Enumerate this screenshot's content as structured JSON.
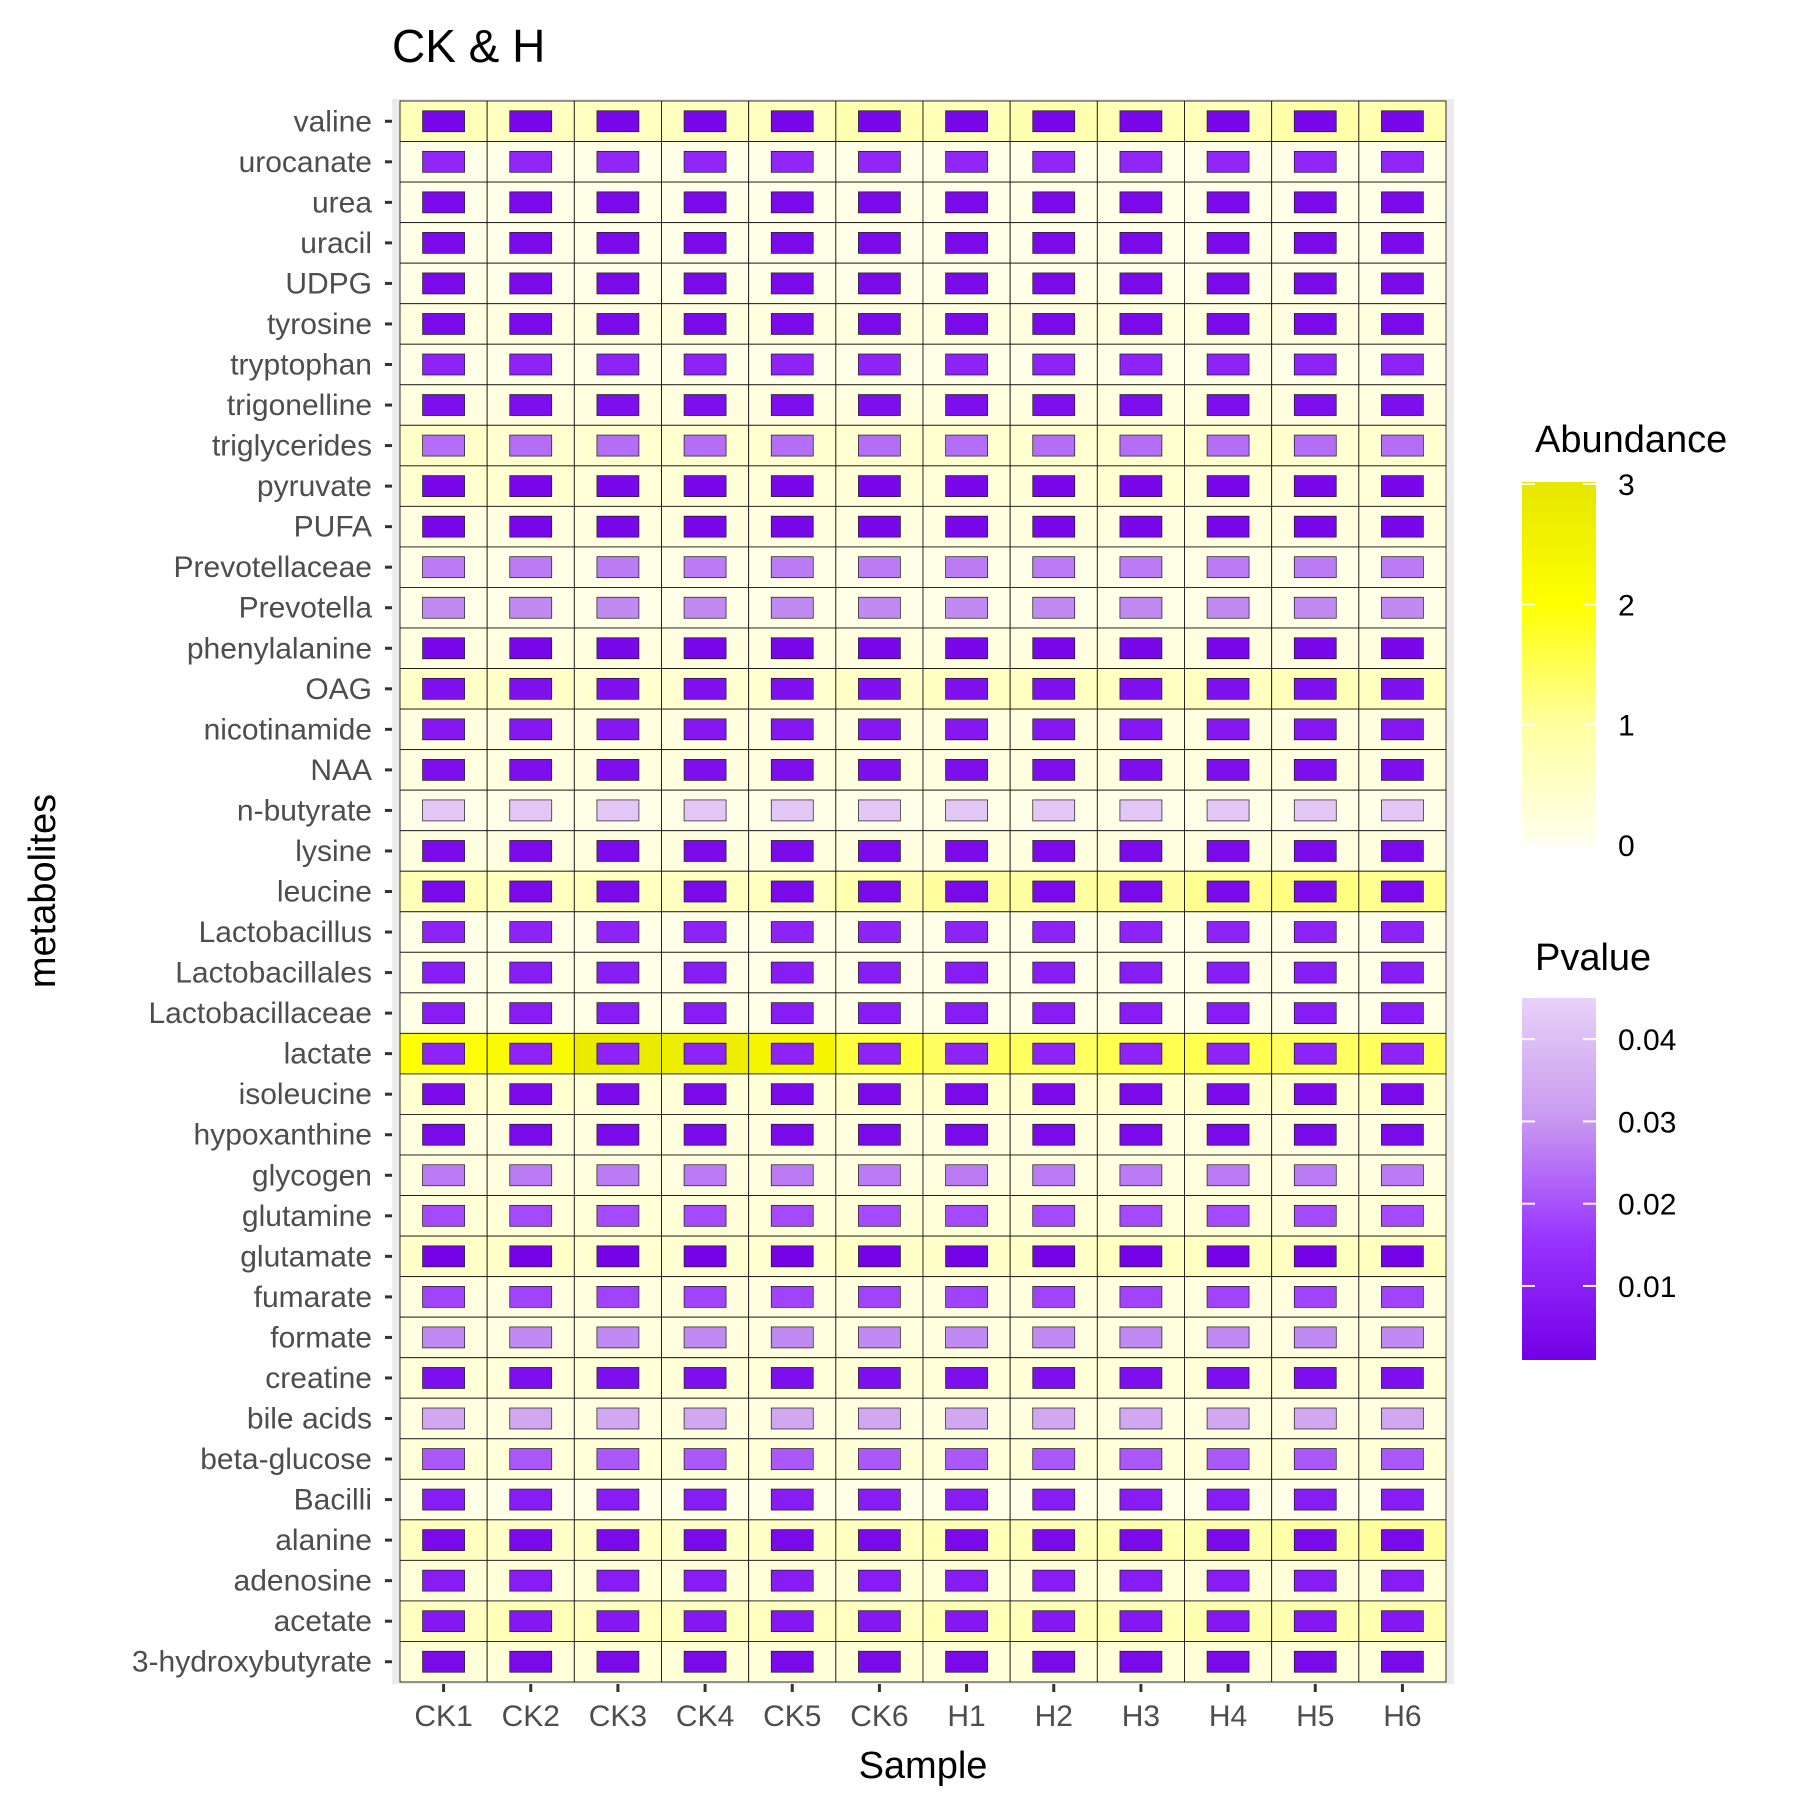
{
  "chart_data": {
    "type": "heatmap",
    "title": "CK & H",
    "xlabel": "Sample",
    "ylabel": "metabolites",
    "x": [
      "CK1",
      "CK2",
      "CK3",
      "CK4",
      "CK5",
      "CK6",
      "H1",
      "H2",
      "H3",
      "H4",
      "H5",
      "H6"
    ],
    "y": [
      "valine",
      "urocanate",
      "urea",
      "uracil",
      "UDPG",
      "tyrosine",
      "tryptophan",
      "trigonelline",
      "triglycerides",
      "pyruvate",
      "PUFA",
      "Prevotellaceae",
      "Prevotella",
      "phenylalanine",
      "OAG",
      "nicotinamide",
      "NAA",
      "n-butyrate",
      "lysine",
      "leucine",
      "Lactobacillus",
      "Lactobacillales",
      "Lactobacillaceae",
      "lactate",
      "isoleucine",
      "hypoxanthine",
      "glycogen",
      "glutamine",
      "glutamate",
      "fumarate",
      "formate",
      "creatine",
      "bile acids",
      "beta-glucose",
      "Bacilli",
      "alanine",
      "adenosine",
      "acetate",
      "3-hydroxybutyrate"
    ],
    "abundance": [
      [
        0.7,
        0.6,
        0.6,
        0.6,
        0.6,
        0.8,
        0.7,
        0.8,
        0.7,
        0.7,
        0.9,
        0.8
      ],
      [
        0.1,
        0.1,
        0.1,
        0.1,
        0.1,
        0.1,
        0.1,
        0.1,
        0.1,
        0.1,
        0.1,
        0.1
      ],
      [
        0.1,
        0.1,
        0.1,
        0.1,
        0.1,
        0.1,
        0.1,
        0.1,
        0.1,
        0.1,
        0.1,
        0.1
      ],
      [
        0.1,
        0.1,
        0.1,
        0.1,
        0.1,
        0.1,
        0.1,
        0.1,
        0.1,
        0.1,
        0.1,
        0.1
      ],
      [
        0.1,
        0.1,
        0.1,
        0.1,
        0.1,
        0.1,
        0.1,
        0.1,
        0.1,
        0.1,
        0.1,
        0.1
      ],
      [
        0.2,
        0.2,
        0.2,
        0.2,
        0.2,
        0.2,
        0.2,
        0.2,
        0.2,
        0.2,
        0.2,
        0.2
      ],
      [
        0.1,
        0.1,
        0.1,
        0.1,
        0.1,
        0.1,
        0.1,
        0.1,
        0.1,
        0.1,
        0.1,
        0.1
      ],
      [
        0.2,
        0.2,
        0.2,
        0.2,
        0.2,
        0.2,
        0.2,
        0.2,
        0.2,
        0.2,
        0.2,
        0.2
      ],
      [
        0.5,
        0.4,
        0.4,
        0.4,
        0.4,
        0.4,
        0.4,
        0.4,
        0.4,
        0.4,
        0.4,
        0.4
      ],
      [
        0.4,
        0.4,
        0.3,
        0.3,
        0.3,
        0.3,
        0.3,
        0.3,
        0.4,
        0.3,
        0.3,
        0.3
      ],
      [
        0.2,
        0.2,
        0.2,
        0.2,
        0.2,
        0.2,
        0.2,
        0.2,
        0.2,
        0.2,
        0.2,
        0.2
      ],
      [
        0.1,
        0.1,
        0.1,
        0.1,
        0.1,
        0.1,
        0.1,
        0.1,
        0.1,
        0.1,
        0.1,
        0.1
      ],
      [
        0.1,
        0.1,
        0.1,
        0.1,
        0.1,
        0.1,
        0.1,
        0.1,
        0.1,
        0.1,
        0.1,
        0.1
      ],
      [
        0.2,
        0.2,
        0.2,
        0.2,
        0.2,
        0.2,
        0.2,
        0.2,
        0.2,
        0.2,
        0.2,
        0.2
      ],
      [
        0.5,
        0.5,
        0.4,
        0.4,
        0.4,
        0.5,
        0.6,
        0.6,
        0.6,
        0.6,
        0.7,
        0.6
      ],
      [
        0.2,
        0.2,
        0.2,
        0.2,
        0.2,
        0.2,
        0.2,
        0.2,
        0.2,
        0.2,
        0.2,
        0.2
      ],
      [
        0.2,
        0.2,
        0.2,
        0.2,
        0.2,
        0.2,
        0.2,
        0.2,
        0.2,
        0.2,
        0.2,
        0.2
      ],
      [
        0.1,
        0.1,
        0.1,
        0.1,
        0.1,
        0.1,
        0.1,
        0.1,
        0.1,
        0.1,
        0.1,
        0.1
      ],
      [
        0.2,
        0.2,
        0.2,
        0.2,
        0.2,
        0.2,
        0.2,
        0.2,
        0.2,
        0.2,
        0.2,
        0.2
      ],
      [
        0.7,
        0.6,
        0.6,
        0.6,
        0.6,
        0.8,
        1.0,
        1.0,
        1.0,
        1.1,
        1.2,
        1.1
      ],
      [
        0.1,
        0.1,
        0.1,
        0.1,
        0.1,
        0.1,
        0.1,
        0.1,
        0.1,
        0.1,
        0.1,
        0.1
      ],
      [
        0.1,
        0.1,
        0.1,
        0.1,
        0.1,
        0.1,
        0.1,
        0.1,
        0.1,
        0.1,
        0.1,
        0.1
      ],
      [
        0.1,
        0.1,
        0.1,
        0.1,
        0.1,
        0.1,
        0.1,
        0.1,
        0.1,
        0.1,
        0.1,
        0.1
      ],
      [
        2.0,
        2.2,
        2.8,
        2.7,
        2.4,
        1.6,
        1.4,
        1.4,
        1.5,
        1.5,
        1.4,
        1.4
      ],
      [
        0.4,
        0.4,
        0.3,
        0.3,
        0.3,
        0.4,
        0.4,
        0.4,
        0.4,
        0.4,
        0.4,
        0.4
      ],
      [
        0.2,
        0.2,
        0.2,
        0.2,
        0.2,
        0.2,
        0.2,
        0.2,
        0.2,
        0.2,
        0.2,
        0.2
      ],
      [
        0.2,
        0.2,
        0.2,
        0.2,
        0.2,
        0.2,
        0.2,
        0.2,
        0.2,
        0.2,
        0.2,
        0.2
      ],
      [
        0.3,
        0.3,
        0.3,
        0.3,
        0.3,
        0.3,
        0.3,
        0.3,
        0.3,
        0.3,
        0.3,
        0.3
      ],
      [
        0.5,
        0.5,
        0.4,
        0.4,
        0.4,
        0.5,
        0.5,
        0.5,
        0.6,
        0.6,
        0.6,
        0.6
      ],
      [
        0.2,
        0.2,
        0.2,
        0.2,
        0.2,
        0.2,
        0.2,
        0.2,
        0.2,
        0.2,
        0.2,
        0.2
      ],
      [
        0.2,
        0.2,
        0.2,
        0.2,
        0.2,
        0.2,
        0.2,
        0.2,
        0.2,
        0.2,
        0.2,
        0.2
      ],
      [
        0.3,
        0.3,
        0.3,
        0.3,
        0.3,
        0.3,
        0.3,
        0.3,
        0.3,
        0.3,
        0.3,
        0.3
      ],
      [
        0.2,
        0.2,
        0.2,
        0.2,
        0.2,
        0.2,
        0.2,
        0.2,
        0.2,
        0.2,
        0.2,
        0.2
      ],
      [
        0.3,
        0.3,
        0.3,
        0.3,
        0.3,
        0.3,
        0.3,
        0.3,
        0.3,
        0.3,
        0.3,
        0.3
      ],
      [
        0.1,
        0.1,
        0.1,
        0.1,
        0.1,
        0.1,
        0.1,
        0.1,
        0.1,
        0.1,
        0.1,
        0.1
      ],
      [
        0.6,
        0.5,
        0.5,
        0.5,
        0.5,
        0.6,
        0.7,
        0.7,
        0.8,
        0.8,
        0.9,
        1.0
      ],
      [
        0.3,
        0.3,
        0.3,
        0.3,
        0.3,
        0.3,
        0.3,
        0.3,
        0.3,
        0.3,
        0.3,
        0.3
      ],
      [
        0.6,
        0.7,
        0.6,
        0.6,
        0.6,
        0.6,
        0.7,
        0.7,
        0.7,
        0.8,
        0.8,
        0.8
      ],
      [
        0.3,
        0.3,
        0.3,
        0.3,
        0.3,
        0.3,
        0.3,
        0.3,
        0.3,
        0.3,
        0.3,
        0.3
      ]
    ],
    "pvalue": [
      0.003,
      0.012,
      0.004,
      0.004,
      0.004,
      0.004,
      0.011,
      0.005,
      0.024,
      0.003,
      0.003,
      0.026,
      0.028,
      0.003,
      0.006,
      0.008,
      0.005,
      0.042,
      0.004,
      0.004,
      0.011,
      0.009,
      0.009,
      0.011,
      0.004,
      0.004,
      0.026,
      0.019,
      0.002,
      0.018,
      0.028,
      0.005,
      0.034,
      0.021,
      0.009,
      0.004,
      0.009,
      0.008,
      0.004
    ],
    "legends": [
      {
        "title": "Abundance",
        "ticks": [
          0,
          1,
          2,
          3
        ],
        "range": [
          0,
          3
        ],
        "colors": [
          "#fffff0",
          "#ffffa0",
          "#ffff00",
          "#e6e600"
        ]
      },
      {
        "title": "Pvalue",
        "ticks": [
          0.01,
          0.02,
          0.03,
          0.04
        ],
        "range": [
          0.001,
          0.045
        ],
        "colors": [
          "#7300e6",
          "#9933ff",
          "#c999f0",
          "#e8d2f8"
        ]
      }
    ],
    "legend_position": "right",
    "grid": true
  }
}
